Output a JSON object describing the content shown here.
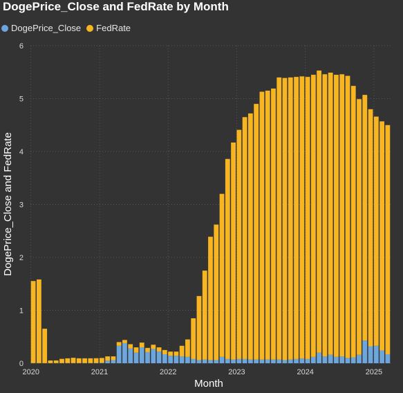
{
  "colors": {
    "background": "#333333",
    "doge": "#6CA6DC",
    "fed": "#F7B621",
    "text": "#ffffff",
    "tick": "#d9d9d9",
    "grid": "#5a5a5a"
  },
  "chart_data": {
    "type": "bar",
    "stacked": true,
    "title": "DogePrice_Close and FedRate by Month",
    "xlabel": "Month",
    "ylabel": "DogePrice_Close and FedRate",
    "ylim": [
      0,
      6
    ],
    "yticks": [
      0,
      1,
      2,
      3,
      4,
      5,
      6
    ],
    "xtick_labels": [
      "2020",
      "2021",
      "2022",
      "2023",
      "2024",
      "2025"
    ],
    "grid": true,
    "legend_position": "top-left",
    "categories": [
      "2020-01",
      "2020-02",
      "2020-03",
      "2020-04",
      "2020-05",
      "2020-06",
      "2020-07",
      "2020-08",
      "2020-09",
      "2020-10",
      "2020-11",
      "2020-12",
      "2021-01",
      "2021-02",
      "2021-03",
      "2021-04",
      "2021-05",
      "2021-06",
      "2021-07",
      "2021-08",
      "2021-09",
      "2021-10",
      "2021-11",
      "2021-12",
      "2022-01",
      "2022-02",
      "2022-03",
      "2022-04",
      "2022-05",
      "2022-06",
      "2022-07",
      "2022-08",
      "2022-09",
      "2022-10",
      "2022-11",
      "2022-12",
      "2023-01",
      "2023-02",
      "2023-03",
      "2023-04",
      "2023-05",
      "2023-06",
      "2023-07",
      "2023-08",
      "2023-09",
      "2023-10",
      "2023-11",
      "2023-12",
      "2024-01",
      "2024-02",
      "2024-03",
      "2024-04",
      "2024-05",
      "2024-06",
      "2024-07",
      "2024-08",
      "2024-09",
      "2024-10",
      "2024-11",
      "2024-12",
      "2025-01",
      "2025-02",
      "2025-03"
    ],
    "series": [
      {
        "name": "DogePrice_Close",
        "values": [
          0.003,
          0.003,
          0.002,
          0.002,
          0.003,
          0.003,
          0.003,
          0.003,
          0.003,
          0.003,
          0.003,
          0.005,
          0.01,
          0.05,
          0.06,
          0.33,
          0.38,
          0.28,
          0.2,
          0.3,
          0.21,
          0.27,
          0.22,
          0.17,
          0.14,
          0.14,
          0.13,
          0.12,
          0.08,
          0.06,
          0.07,
          0.06,
          0.06,
          0.12,
          0.08,
          0.07,
          0.08,
          0.08,
          0.07,
          0.07,
          0.07,
          0.07,
          0.07,
          0.07,
          0.06,
          0.07,
          0.08,
          0.09,
          0.08,
          0.12,
          0.2,
          0.13,
          0.16,
          0.12,
          0.13,
          0.1,
          0.11,
          0.16,
          0.43,
          0.32,
          0.33,
          0.24,
          0.17
        ]
      },
      {
        "name": "FedRate",
        "values": [
          1.55,
          1.58,
          0.65,
          0.05,
          0.05,
          0.08,
          0.09,
          0.1,
          0.09,
          0.09,
          0.09,
          0.09,
          0.09,
          0.08,
          0.07,
          0.07,
          0.06,
          0.08,
          0.1,
          0.09,
          0.08,
          0.08,
          0.08,
          0.08,
          0.08,
          0.08,
          0.2,
          0.33,
          0.77,
          1.21,
          1.68,
          2.33,
          2.56,
          3.08,
          3.78,
          4.1,
          4.33,
          4.57,
          4.65,
          4.83,
          5.06,
          5.08,
          5.12,
          5.33,
          5.33,
          5.33,
          5.33,
          5.33,
          5.33,
          5.33,
          5.33,
          5.33,
          5.33,
          5.33,
          5.33,
          5.33,
          5.13,
          4.83,
          4.64,
          4.48,
          4.33,
          4.33,
          4.33
        ]
      }
    ]
  }
}
